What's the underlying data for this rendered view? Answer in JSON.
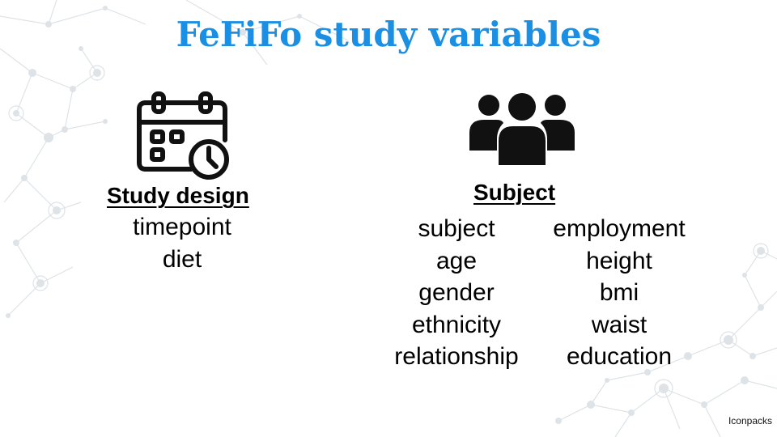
{
  "title": "FeFiFo study variables",
  "study_design": {
    "icon": "calendar-clock-icon",
    "heading": "Study design",
    "variables": [
      "timepoint",
      "diet"
    ]
  },
  "subject": {
    "icon": "people-group-icon",
    "heading": "Subject",
    "variables_left": [
      "subject",
      "age",
      "gender",
      "ethnicity",
      "relationship"
    ],
    "variables_right": [
      "employment",
      "height",
      "bmi",
      "waist",
      "education"
    ]
  },
  "credit": "Iconpacks",
  "colors": {
    "title": "#1a8fe3",
    "text": "#000000",
    "network": "#d8dfe3"
  }
}
